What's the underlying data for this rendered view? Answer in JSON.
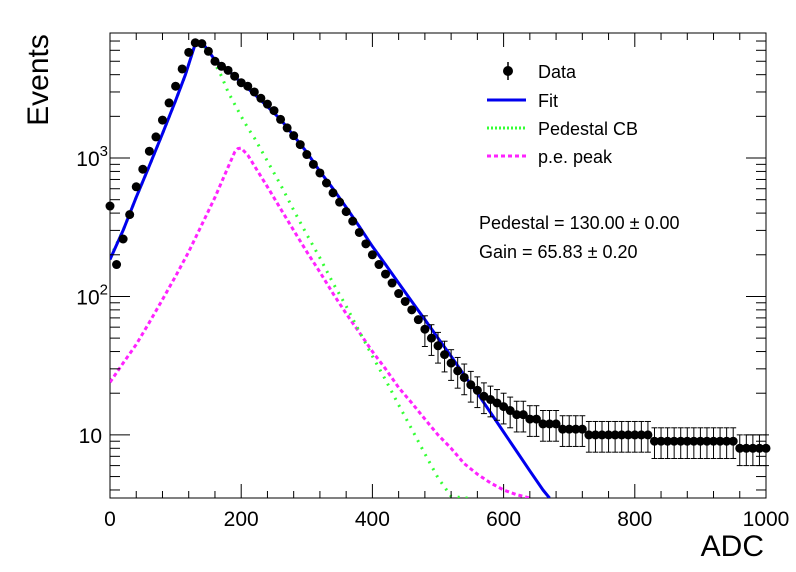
{
  "chart_data": {
    "type": "scatter",
    "title": "",
    "xlabel": "ADC",
    "ylabel": "Events",
    "xlim": [
      0,
      1000
    ],
    "ylim": [
      3.5,
      8000
    ],
    "yscale": "log",
    "grid": false,
    "legend_position": "top-right",
    "x_ticks": [
      {
        "value": 0,
        "label": "0"
      },
      {
        "value": 200,
        "label": "200"
      },
      {
        "value": 400,
        "label": "400"
      },
      {
        "value": 600,
        "label": "600"
      },
      {
        "value": 800,
        "label": "800"
      },
      {
        "value": 1000,
        "label": "1000"
      }
    ],
    "y_ticks": [
      {
        "value": 10,
        "base": "10",
        "exp": ""
      },
      {
        "value": 100,
        "base": "10",
        "exp": "2"
      },
      {
        "value": 1000,
        "base": "10",
        "exp": "3"
      }
    ],
    "series": [
      {
        "name": "Data",
        "kind": "points",
        "color": "#000000",
        "x": [
          0,
          10,
          20,
          30,
          40,
          50,
          60,
          70,
          80,
          90,
          100,
          110,
          120,
          130,
          140,
          150,
          160,
          170,
          180,
          190,
          200,
          210,
          220,
          230,
          240,
          250,
          260,
          270,
          280,
          290,
          300,
          310,
          320,
          330,
          340,
          350,
          360,
          370,
          380,
          390,
          400,
          410,
          420,
          430,
          440,
          450,
          460,
          470,
          480,
          490,
          500,
          510,
          520,
          530,
          540,
          550,
          560,
          570,
          580,
          590,
          600,
          610,
          620,
          630,
          640,
          650,
          660,
          670,
          680,
          690,
          700,
          710,
          720,
          730,
          740,
          750,
          760,
          770,
          780,
          790,
          800,
          810,
          820,
          830,
          840,
          850,
          860,
          870,
          880,
          890,
          900,
          910,
          920,
          930,
          940,
          950,
          960,
          970,
          980,
          990,
          1000
        ],
        "y": [
          450,
          170,
          260,
          390,
          620,
          830,
          1120,
          1420,
          1880,
          2500,
          3300,
          4400,
          5800,
          6800,
          6700,
          5900,
          5000,
          4600,
          4300,
          3900,
          3500,
          3300,
          3000,
          2700,
          2450,
          2200,
          1900,
          1650,
          1450,
          1250,
          1060,
          900,
          780,
          660,
          560,
          480,
          410,
          350,
          290,
          240,
          200,
          170,
          145,
          125,
          105,
          92,
          80,
          68,
          58,
          50,
          44,
          38,
          33,
          29,
          26,
          23,
          21,
          19,
          18,
          17,
          16,
          15,
          14,
          14,
          13,
          13,
          12,
          12,
          12,
          11,
          11,
          11,
          11,
          10,
          10,
          10,
          10,
          10,
          10,
          10,
          10,
          10,
          10,
          9,
          9,
          9,
          9,
          9,
          9,
          9,
          9,
          9,
          9,
          9,
          9,
          9,
          8,
          8,
          8,
          8,
          8
        ],
        "yerr_frac": 0.25
      },
      {
        "name": "Fit",
        "kind": "line",
        "color": "#0000ee",
        "x": [
          0,
          20,
          40,
          60,
          80,
          100,
          115,
          130,
          145,
          160,
          180,
          200,
          220,
          240,
          260,
          280,
          300,
          320,
          340,
          360,
          380,
          400,
          420,
          440,
          460,
          480,
          500,
          520,
          540,
          560,
          580,
          600,
          620,
          640,
          660,
          670
        ],
        "y": [
          185,
          300,
          520,
          880,
          1500,
          2600,
          4000,
          6700,
          6400,
          5100,
          4300,
          3500,
          2900,
          2350,
          1900,
          1450,
          1100,
          800,
          600,
          440,
          320,
          230,
          170,
          125,
          92,
          68,
          50,
          37,
          27,
          20,
          14.5,
          10.5,
          7.6,
          5.5,
          4.0,
          3.5
        ]
      },
      {
        "name": "Pedestal CB",
        "kind": "dotted",
        "color": "#33ff33",
        "x": [
          0,
          20,
          40,
          60,
          80,
          100,
          115,
          130,
          145,
          160,
          170,
          180,
          190,
          200,
          210,
          220,
          240,
          260,
          280,
          300,
          320,
          340,
          360,
          380,
          400,
          420,
          440,
          460,
          480,
          500,
          520,
          540,
          550
        ],
        "y": [
          190,
          300,
          520,
          880,
          1500,
          2600,
          4000,
          6700,
          6300,
          4800,
          3900,
          3000,
          2450,
          2000,
          1650,
          1400,
          950,
          640,
          420,
          280,
          190,
          125,
          85,
          56,
          37,
          25,
          16.5,
          11,
          7.3,
          4.9,
          3.6,
          3.5,
          3.5
        ]
      },
      {
        "name": "p.e. peak",
        "kind": "dashed",
        "color": "#ff22ff",
        "x": [
          0,
          20,
          40,
          60,
          80,
          100,
          120,
          140,
          160,
          180,
          190,
          195,
          200,
          210,
          220,
          240,
          260,
          280,
          300,
          320,
          340,
          360,
          380,
          400,
          420,
          440,
          460,
          480,
          500,
          520,
          540,
          560,
          580,
          600,
          620,
          640
        ],
        "y": [
          24,
          33,
          45,
          65,
          95,
          140,
          210,
          330,
          520,
          860,
          1100,
          1170,
          1180,
          1050,
          880,
          620,
          430,
          300,
          210,
          150,
          105,
          75,
          55,
          40,
          30,
          22,
          17,
          13,
          10,
          8,
          6.2,
          5.2,
          4.5,
          4.0,
          3.7,
          3.5
        ]
      }
    ],
    "annotations": [
      "Pedestal = 130.00 ± 0.00",
      "Gain = 65.83 ± 0.20"
    ]
  }
}
